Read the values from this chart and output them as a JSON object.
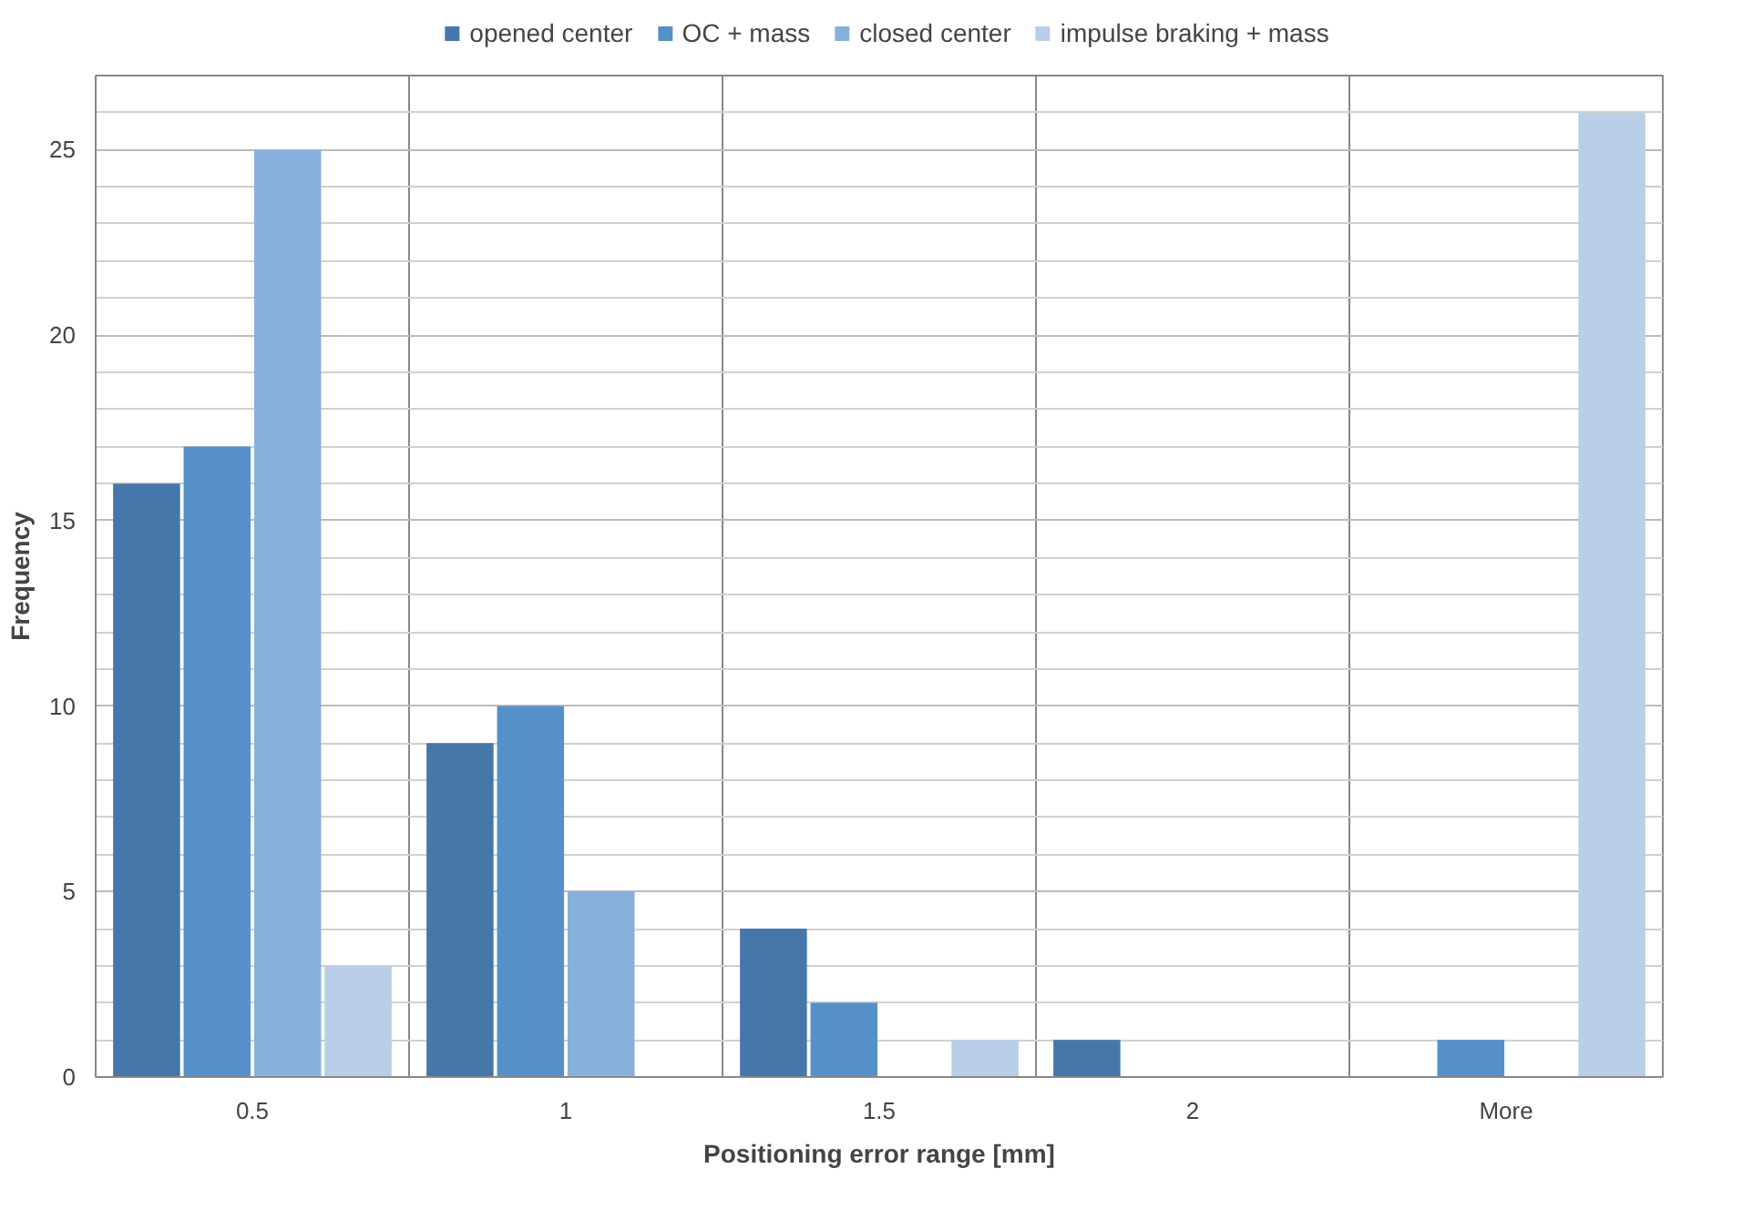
{
  "chart_data": {
    "type": "bar",
    "xlabel": "Positioning error range [mm]",
    "ylabel": "Frequency",
    "categories": [
      "0.5",
      "1",
      "1.5",
      "2",
      "More"
    ],
    "series": [
      {
        "name": "opened center",
        "color": "#4677aa",
        "values": [
          16,
          9,
          4,
          1,
          0
        ]
      },
      {
        "name": "OC + mass",
        "color": "#5591c8",
        "values": [
          17,
          10,
          2,
          0,
          1
        ]
      },
      {
        "name": "closed center",
        "color": "#88b0dd",
        "values": [
          25,
          5,
          0,
          0,
          0
        ]
      },
      {
        "name": "impulse braking + mass",
        "color": "#b9cfe8",
        "values": [
          3,
          0,
          1,
          0,
          26
        ]
      }
    ],
    "ylim": [
      0,
      27
    ],
    "yticks": [
      0,
      5,
      10,
      15,
      20,
      25
    ],
    "grid": true,
    "legend": "top"
  }
}
